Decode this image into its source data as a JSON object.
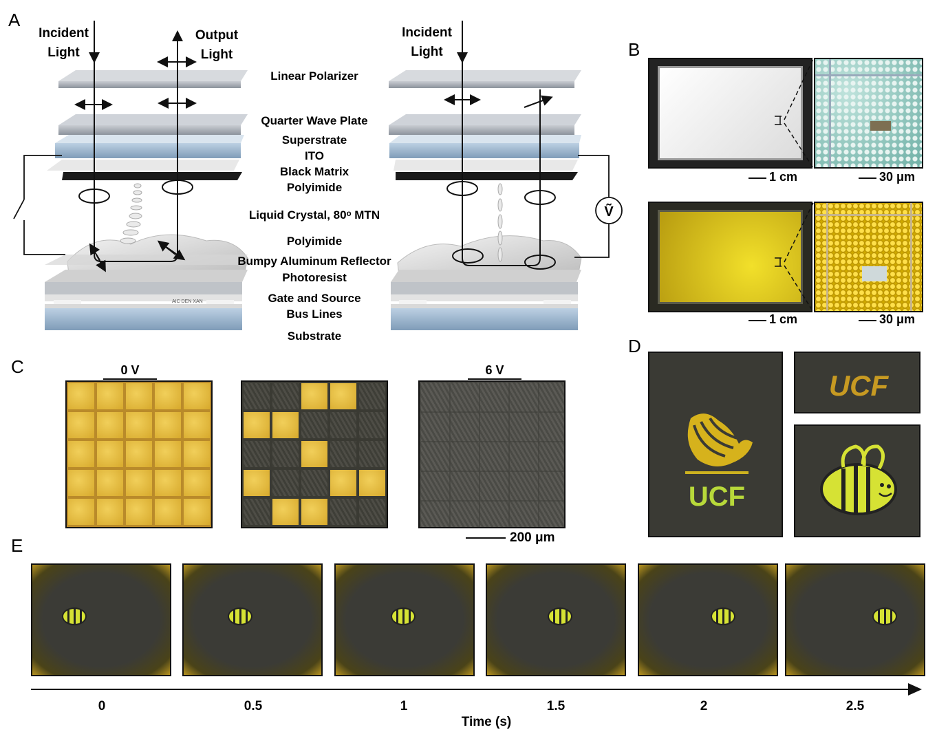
{
  "panels": {
    "a": "A",
    "b": "B",
    "c": "C",
    "d": "D",
    "e": "E"
  },
  "panel_a": {
    "left_incident": [
      "Incident",
      "Light"
    ],
    "left_output": [
      "Output",
      "Light"
    ],
    "right_incident": [
      "Incident",
      "Light"
    ],
    "layers": [
      "Linear Polarizer",
      "Quarter Wave Plate",
      "Superstrate",
      "ITO",
      "Black Matrix",
      "Polyimide",
      "Liquid Crystal, 80ᵒ MTN",
      "Polyimide",
      "Bumpy Aluminum Reflector",
      "Photoresist",
      "Gate and Source",
      "Bus Lines",
      "Substrate"
    ],
    "voltage_symbol": "Ṽ",
    "chip_text": "AIC DEN XAN"
  },
  "panel_b": {
    "scale_1cm_top": "1 cm",
    "scale_30um_top": "30 μm",
    "scale_1cm_bottom": "1 cm",
    "scale_30um_bottom": "30 μm",
    "colors": {
      "white_panel": "#ececec",
      "yellow_panel": "#d7c21a",
      "micro_top": "#8fc9c0",
      "micro_bottom": "#d9b300"
    }
  },
  "panel_c": {
    "label_0v": "0 V",
    "label_6v": "6 V",
    "scale": "200 μm",
    "pattern": [
      [
        0,
        0,
        1,
        1,
        0
      ],
      [
        1,
        1,
        0,
        0,
        0
      ],
      [
        0,
        0,
        1,
        0,
        0
      ],
      [
        1,
        0,
        0,
        1,
        1
      ],
      [
        0,
        1,
        1,
        0,
        0
      ]
    ]
  },
  "panel_d": {
    "logo_text": "UCF",
    "banner_text": "UCF"
  },
  "panel_e": {
    "times": [
      "0",
      "0.5",
      "1",
      "1.5",
      "2",
      "2.5"
    ],
    "axis_label": "Time (s)",
    "bee_positions": [
      0.28,
      0.38,
      0.46,
      0.5,
      0.58,
      0.68
    ]
  }
}
